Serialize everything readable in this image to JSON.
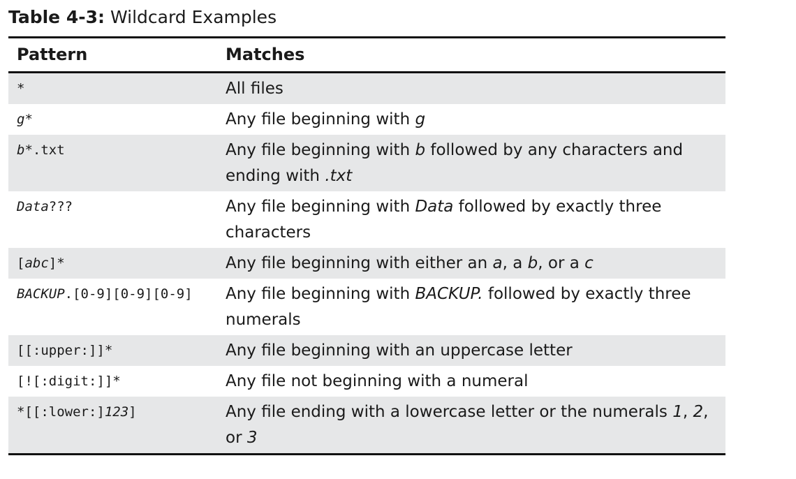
{
  "caption": {
    "label": "Table 4-3:",
    "text": "Wildcard Examples"
  },
  "table": {
    "headers": [
      "Pattern",
      "Matches"
    ],
    "rows": [
      {
        "pattern": [
          {
            "t": "*",
            "i": false
          }
        ],
        "matches": [
          {
            "t": "All files",
            "i": false
          }
        ]
      },
      {
        "pattern": [
          {
            "t": "g",
            "i": true
          },
          {
            "t": "*",
            "i": false
          }
        ],
        "matches": [
          {
            "t": "Any file beginning with ",
            "i": false
          },
          {
            "t": "g",
            "i": true
          }
        ]
      },
      {
        "pattern": [
          {
            "t": "b",
            "i": true
          },
          {
            "t": "*.txt",
            "i": false
          }
        ],
        "matches": [
          {
            "t": "Any file beginning with ",
            "i": false
          },
          {
            "t": "b",
            "i": true
          },
          {
            "t": " followed by any characters and ending with ",
            "i": false
          },
          {
            "t": ".txt",
            "i": true
          }
        ]
      },
      {
        "pattern": [
          {
            "t": "Data",
            "i": true
          },
          {
            "t": "???",
            "i": false
          }
        ],
        "matches": [
          {
            "t": "Any file beginning with ",
            "i": false
          },
          {
            "t": "Data",
            "i": true
          },
          {
            "t": " followed by exactly three characters",
            "i": false
          }
        ]
      },
      {
        "pattern": [
          {
            "t": "[",
            "i": false
          },
          {
            "t": "abc",
            "i": true
          },
          {
            "t": "]*",
            "i": false
          }
        ],
        "matches": [
          {
            "t": "Any file beginning with either an ",
            "i": false
          },
          {
            "t": "a",
            "i": true
          },
          {
            "t": ", a ",
            "i": false
          },
          {
            "t": "b",
            "i": true
          },
          {
            "t": ", or a ",
            "i": false
          },
          {
            "t": "c",
            "i": true
          }
        ]
      },
      {
        "pattern": [
          {
            "t": "BACKUP",
            "i": true
          },
          {
            "t": ".[0-9][0-9][0-9]",
            "i": false
          }
        ],
        "matches": [
          {
            "t": "Any file beginning with ",
            "i": false
          },
          {
            "t": "BACKUP.",
            "i": true
          },
          {
            "t": " followed by exactly three numerals",
            "i": false
          }
        ]
      },
      {
        "pattern": [
          {
            "t": "[[:upper:]]*",
            "i": false
          }
        ],
        "matches": [
          {
            "t": "Any file beginning with an uppercase letter",
            "i": false
          }
        ]
      },
      {
        "pattern": [
          {
            "t": "[![:digit:]]*",
            "i": false
          }
        ],
        "matches": [
          {
            "t": "Any file not beginning with a numeral",
            "i": false
          }
        ]
      },
      {
        "pattern": [
          {
            "t": "*[[:lower:]",
            "i": false
          },
          {
            "t": "123",
            "i": true
          },
          {
            "t": "]",
            "i": false
          }
        ],
        "matches": [
          {
            "t": "Any file ending with a lowercase letter or the numerals ",
            "i": false
          },
          {
            "t": "1",
            "i": true
          },
          {
            "t": ", ",
            "i": false
          },
          {
            "t": "2",
            "i": true
          },
          {
            "t": ", or ",
            "i": false
          },
          {
            "t": "3",
            "i": true
          }
        ]
      }
    ]
  },
  "colors": {
    "rule": "#111111",
    "shade": "#e6e7e8",
    "text": "#1a1a1a"
  }
}
